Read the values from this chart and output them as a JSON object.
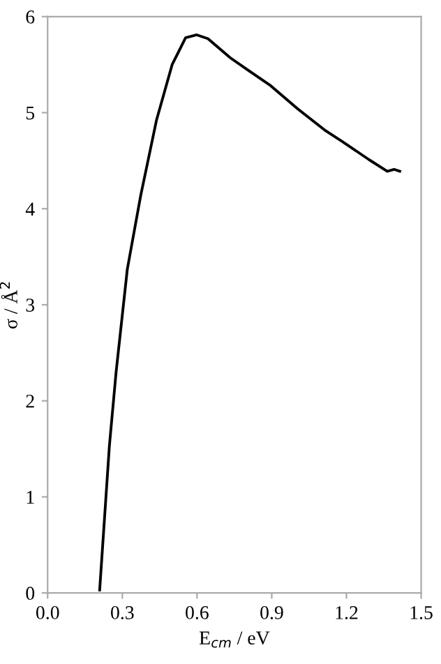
{
  "chart_data": {
    "type": "line",
    "xlabel": "E$_{cm}$ / eV",
    "ylabel": "σ / Å$^{2}$",
    "x": [
      0.209,
      0.248,
      0.275,
      0.32,
      0.374,
      0.437,
      0.5,
      0.554,
      0.599,
      0.644,
      0.734,
      0.806,
      0.896,
      1.004,
      1.112,
      1.183,
      1.291,
      1.364,
      1.391,
      1.414
    ],
    "values": [
      0.03,
      1.53,
      2.3,
      3.37,
      4.14,
      4.92,
      5.5,
      5.78,
      5.81,
      5.77,
      5.57,
      5.44,
      5.28,
      5.04,
      4.82,
      4.7,
      4.51,
      4.39,
      4.41,
      4.39
    ],
    "color": "#000000",
    "xlim": [
      0,
      1.5
    ],
    "ylim": [
      0,
      6
    ],
    "xticks": [
      {
        "value": 0,
        "label": "0.0"
      },
      0.3,
      0.6,
      0.9,
      1.2,
      1.5
    ],
    "yticks": [
      0,
      1,
      2,
      3,
      4,
      5,
      6
    ],
    "grid": false,
    "marker": "none",
    "line_style": "solid",
    "legend": false
  }
}
